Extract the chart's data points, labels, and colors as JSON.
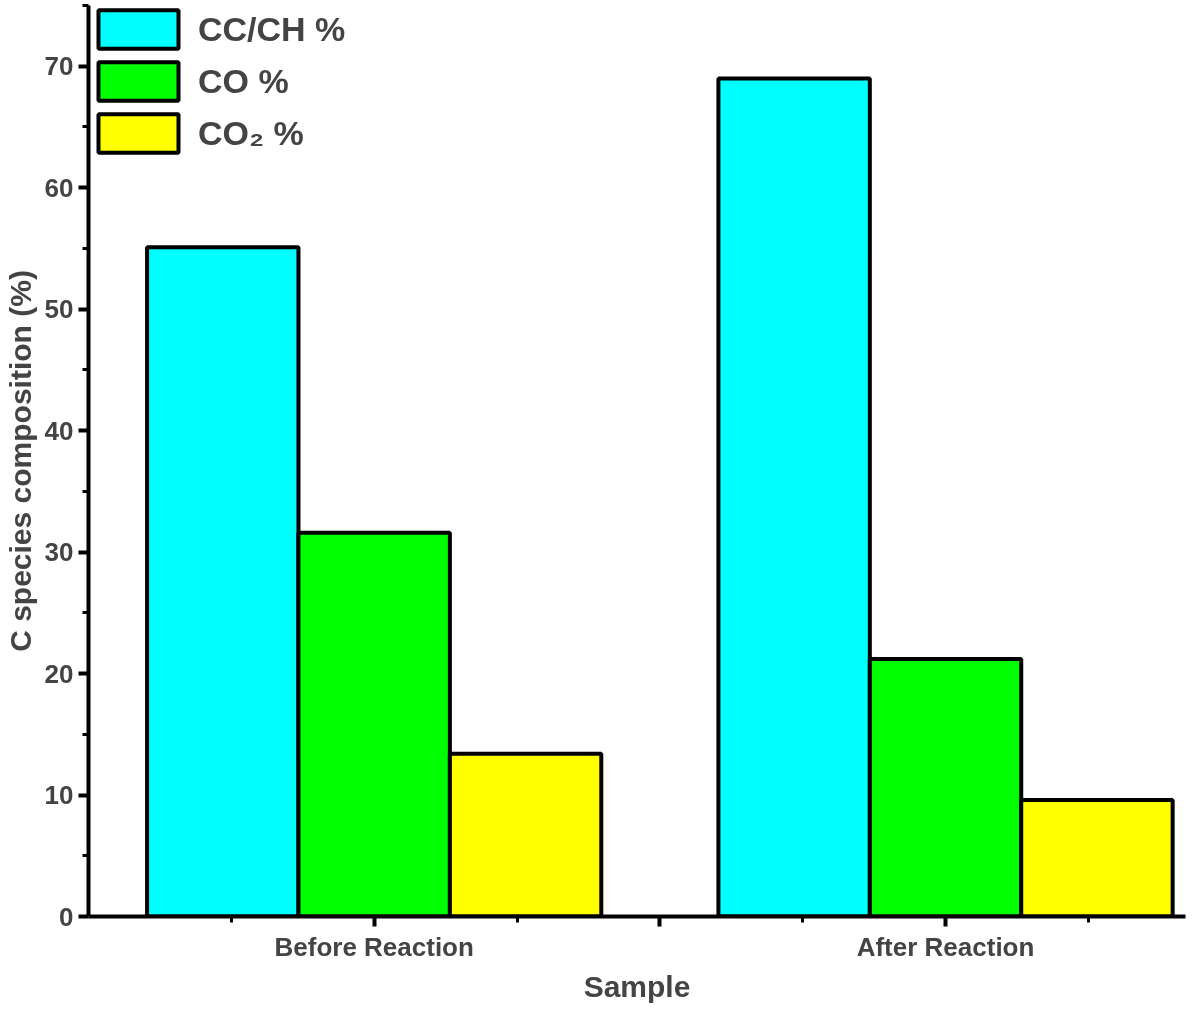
{
  "chart_data": {
    "type": "bar",
    "xlabel": "Sample",
    "ylabel": "C species composition (%)",
    "categories": [
      "Before Reaction",
      "After Reaction"
    ],
    "series": [
      {
        "name": "CC/CH %",
        "color": "#00ffff",
        "values": [
          55.1,
          69.0
        ]
      },
      {
        "name": "CO %",
        "color": "#00ff00",
        "values": [
          31.6,
          21.2
        ]
      },
      {
        "name": "CO₂ %",
        "color": "#ffff00",
        "values": [
          13.4,
          9.6
        ]
      }
    ],
    "ylim": [
      0,
      75
    ],
    "yticks": [
      0,
      10,
      20,
      30,
      40,
      50,
      60,
      70
    ],
    "grid": false,
    "legend": "top left"
  }
}
